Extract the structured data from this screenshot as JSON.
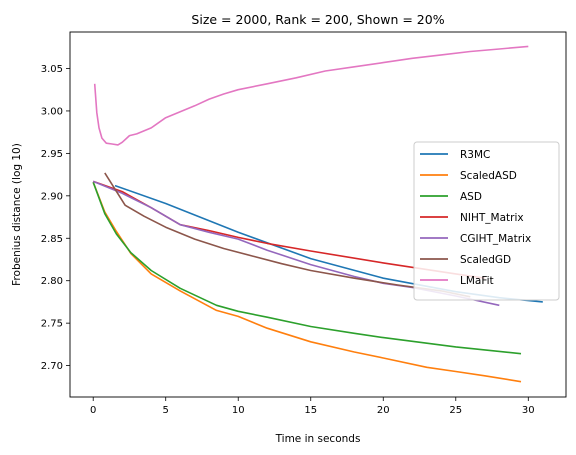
{
  "chart_data": {
    "type": "line",
    "title": "Size = 2000, Rank = 200, Shown = 20%",
    "xlabel": "Time in seconds",
    "ylabel": "Frobenius distance (log 10)",
    "xlim": [
      -1.6,
      32.6
    ],
    "ylim": [
      2.663,
      3.093
    ],
    "xticks": [
      0,
      5,
      10,
      15,
      20,
      25,
      30
    ],
    "yticks": [
      2.7,
      2.75,
      2.8,
      2.85,
      2.9,
      2.95,
      3.0,
      3.05
    ],
    "ytick_labels": [
      "2.70",
      "2.75",
      "2.80",
      "2.85",
      "2.90",
      "2.95",
      "3.00",
      "3.05"
    ],
    "grid": false,
    "legend_position": "center-right",
    "series": [
      {
        "name": "R3MC",
        "color": "#1f77b4",
        "points": [
          [
            1.5,
            2.912
          ],
          [
            5,
            2.891
          ],
          [
            10,
            2.857
          ],
          [
            15,
            2.826
          ],
          [
            20,
            2.803
          ],
          [
            25,
            2.787
          ],
          [
            28,
            2.78
          ],
          [
            31,
            2.775
          ]
        ]
      },
      {
        "name": "ScaledASD",
        "color": "#ff7f0e",
        "points": [
          [
            0,
            2.916
          ],
          [
            0.8,
            2.881
          ],
          [
            1.6,
            2.858
          ],
          [
            2.6,
            2.832
          ],
          [
            4,
            2.808
          ],
          [
            6,
            2.788
          ],
          [
            8.5,
            2.765
          ],
          [
            10,
            2.758
          ],
          [
            12,
            2.744
          ],
          [
            15,
            2.728
          ],
          [
            18,
            2.716
          ],
          [
            20,
            2.709
          ],
          [
            23,
            2.698
          ],
          [
            25,
            2.693
          ],
          [
            27,
            2.688
          ],
          [
            29.5,
            2.681
          ]
        ]
      },
      {
        "name": "ASD",
        "color": "#2ca02c",
        "points": [
          [
            0,
            2.916
          ],
          [
            0.8,
            2.879
          ],
          [
            1.6,
            2.855
          ],
          [
            2.6,
            2.833
          ],
          [
            4,
            2.812
          ],
          [
            6,
            2.791
          ],
          [
            8.5,
            2.771
          ],
          [
            10,
            2.764
          ],
          [
            12,
            2.757
          ],
          [
            15,
            2.746
          ],
          [
            18,
            2.738
          ],
          [
            20,
            2.733
          ],
          [
            25,
            2.722
          ],
          [
            29.5,
            2.714
          ]
        ]
      },
      {
        "name": "NIHT_Matrix",
        "color": "#d62728",
        "points": [
          [
            0,
            2.917
          ],
          [
            2,
            2.905
          ],
          [
            4,
            2.886
          ],
          [
            6,
            2.866
          ],
          [
            8,
            2.859
          ],
          [
            10,
            2.851
          ],
          [
            12,
            2.844
          ],
          [
            15,
            2.835
          ],
          [
            20,
            2.821
          ],
          [
            25,
            2.808
          ],
          [
            27,
            2.803
          ]
        ]
      },
      {
        "name": "CGIHT_Matrix",
        "color": "#9467bd",
        "points": [
          [
            0,
            2.917
          ],
          [
            2,
            2.903
          ],
          [
            4,
            2.886
          ],
          [
            6,
            2.866
          ],
          [
            8,
            2.857
          ],
          [
            10,
            2.849
          ],
          [
            12,
            2.836
          ],
          [
            15,
            2.819
          ],
          [
            18,
            2.805
          ],
          [
            20,
            2.797
          ],
          [
            22,
            2.792
          ],
          [
            25,
            2.782
          ],
          [
            28,
            2.771
          ]
        ]
      },
      {
        "name": "ScaledGD",
        "color": "#8c564b",
        "points": [
          [
            0.8,
            2.927
          ],
          [
            2.2,
            2.889
          ],
          [
            3.5,
            2.876
          ],
          [
            5,
            2.863
          ],
          [
            7,
            2.849
          ],
          [
            9,
            2.838
          ],
          [
            11,
            2.829
          ],
          [
            13,
            2.82
          ],
          [
            15,
            2.812
          ],
          [
            18,
            2.803
          ],
          [
            21,
            2.795
          ],
          [
            24,
            2.788
          ],
          [
            26,
            2.781
          ]
        ]
      },
      {
        "name": "LMaFit",
        "color": "#e377c2",
        "points": [
          [
            0.1,
            3.032
          ],
          [
            0.25,
            2.998
          ],
          [
            0.4,
            2.98
          ],
          [
            0.6,
            2.968
          ],
          [
            0.9,
            2.962
          ],
          [
            1.3,
            2.961
          ],
          [
            1.7,
            2.96
          ],
          [
            2,
            2.963
          ],
          [
            2.5,
            2.971
          ],
          [
            3,
            2.973
          ],
          [
            4,
            2.98
          ],
          [
            5,
            2.992
          ],
          [
            6,
            2.999
          ],
          [
            7,
            3.006
          ],
          [
            8,
            3.014
          ],
          [
            9,
            3.02
          ],
          [
            10,
            3.025
          ],
          [
            12,
            3.032
          ],
          [
            14,
            3.039
          ],
          [
            16,
            3.047
          ],
          [
            18,
            3.052
          ],
          [
            20,
            3.057
          ],
          [
            22,
            3.062
          ],
          [
            24,
            3.066
          ],
          [
            26,
            3.07
          ],
          [
            28,
            3.073
          ],
          [
            30,
            3.076
          ]
        ]
      }
    ]
  }
}
